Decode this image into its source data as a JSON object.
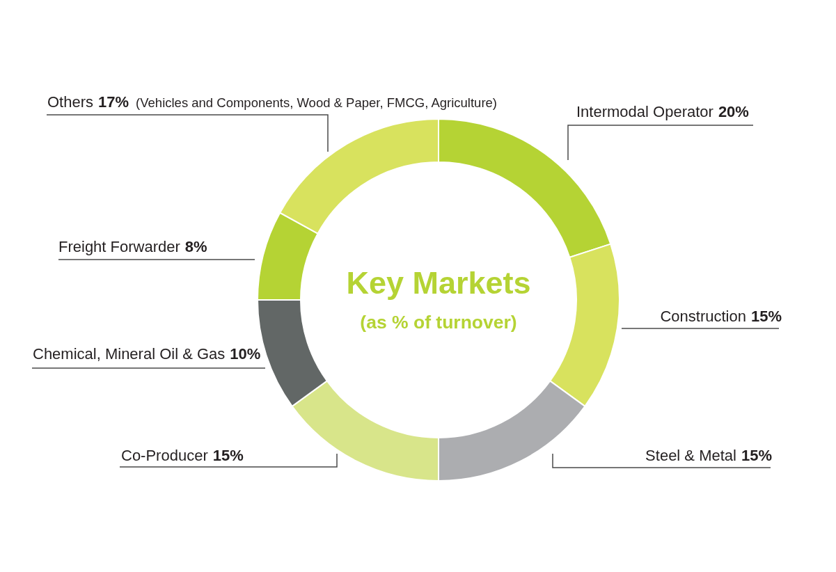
{
  "chart_data": {
    "type": "donut",
    "title": "Key Markets",
    "subtitle": "(as % of turnover)",
    "categories": [
      "Intermodal Operator",
      "Construction",
      "Steel & Metal",
      "Co-Producer",
      "Chemical, Mineral Oil & Gas",
      "Freight Forwarder",
      "Others"
    ],
    "values": [
      20,
      15,
      15,
      15,
      10,
      8,
      17
    ],
    "colors": [
      "#b5d334",
      "#d8e25e",
      "#acadb0",
      "#d8e58a",
      "#626766",
      "#b5d334",
      "#d8e25e"
    ],
    "value_labels": [
      "20%",
      "15%",
      "15%",
      "15%",
      "10%",
      "8%",
      "17%"
    ],
    "annotations": [
      {
        "text": "(Vehicles and Components, Wood & Paper, FMCG, Agriculture)",
        "x": "Others"
      }
    ]
  }
}
